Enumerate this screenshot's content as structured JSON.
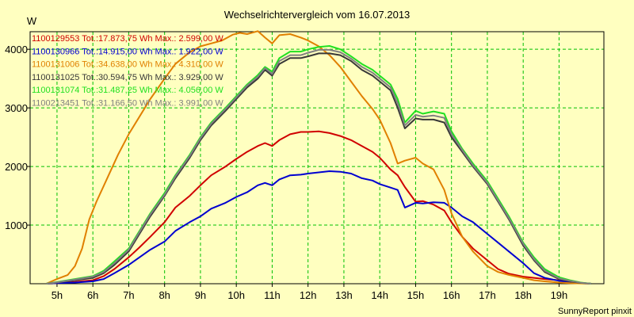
{
  "chart_data": {
    "type": "line",
    "title": "Wechselrichtervergleich vom 16.07.2013",
    "ylabel": "W",
    "footer": "SunnyReport pinxit",
    "x_ticks": [
      {
        "v": 5,
        "label": "5h"
      },
      {
        "v": 6,
        "label": "6h"
      },
      {
        "v": 7,
        "label": "7h"
      },
      {
        "v": 8,
        "label": "8h"
      },
      {
        "v": 9,
        "label": "9h"
      },
      {
        "v": 10,
        "label": "10h"
      },
      {
        "v": 11,
        "label": "11h"
      },
      {
        "v": 12,
        "label": "12h"
      },
      {
        "v": 13,
        "label": "13h"
      },
      {
        "v": 14,
        "label": "14h"
      },
      {
        "v": 15,
        "label": "15h"
      },
      {
        "v": 16,
        "label": "16h"
      },
      {
        "v": 17,
        "label": "17h"
      },
      {
        "v": 18,
        "label": "18h"
      },
      {
        "v": 19,
        "label": "19h"
      }
    ],
    "y_ticks": [
      {
        "v": 1000,
        "label": "1000"
      },
      {
        "v": 2000,
        "label": "2000"
      },
      {
        "v": 3000,
        "label": "3000"
      },
      {
        "v": 4000,
        "label": "4000"
      }
    ],
    "xlim": [
      4.25,
      20.25
    ],
    "ylim": [
      0,
      4300
    ],
    "grid": true,
    "legend_position": "top-left",
    "colors": {
      "background": "#ffffc0",
      "grid": "#00c000",
      "axis": "#000000"
    },
    "series": [
      {
        "name": "1100129553 Tot.:17.873,75 Wh Max.: 2.599,00 W",
        "color": "#d00000",
        "x": [
          4.7,
          5.0,
          5.5,
          6.0,
          6.3,
          6.6,
          7.0,
          7.3,
          7.6,
          8.0,
          8.3,
          8.7,
          9.0,
          9.3,
          9.7,
          10.0,
          10.3,
          10.6,
          10.8,
          11.0,
          11.2,
          11.5,
          11.8,
          12.0,
          12.3,
          12.6,
          12.9,
          13.2,
          13.5,
          13.8,
          14.0,
          14.3,
          14.5,
          14.7,
          15.0,
          15.2,
          15.5,
          15.8,
          16.0,
          16.3,
          16.6,
          17.0,
          17.3,
          17.6,
          18.0,
          18.3,
          18.6,
          19.0,
          19.3,
          19.6,
          19.9
        ],
        "y": [
          0,
          10,
          30,
          60,
          130,
          250,
          450,
          620,
          800,
          1050,
          1300,
          1500,
          1680,
          1850,
          2000,
          2130,
          2250,
          2350,
          2400,
          2350,
          2450,
          2550,
          2590,
          2590,
          2599,
          2570,
          2520,
          2450,
          2350,
          2250,
          2150,
          1950,
          1850,
          1650,
          1400,
          1410,
          1350,
          1250,
          1050,
          800,
          600,
          400,
          250,
          170,
          120,
          100,
          80,
          60,
          30,
          10,
          0
        ]
      },
      {
        "name": "1100130966 Tot.:14.915,00 Wh Max.: 1.922,00 W",
        "color": "#0000d0",
        "x": [
          4.7,
          5.0,
          5.5,
          6.0,
          6.3,
          6.6,
          7.0,
          7.3,
          7.6,
          8.0,
          8.3,
          8.7,
          9.0,
          9.3,
          9.7,
          10.0,
          10.3,
          10.6,
          10.8,
          11.0,
          11.2,
          11.5,
          11.8,
          12.0,
          12.3,
          12.6,
          12.9,
          13.2,
          13.5,
          13.8,
          14.0,
          14.3,
          14.5,
          14.7,
          15.0,
          15.2,
          15.5,
          15.8,
          16.0,
          16.3,
          16.6,
          17.0,
          17.3,
          17.6,
          18.0,
          18.3,
          18.6,
          19.0,
          19.3,
          19.6,
          19.9
        ],
        "y": [
          0,
          10,
          20,
          40,
          80,
          180,
          320,
          450,
          580,
          720,
          900,
          1050,
          1150,
          1280,
          1380,
          1480,
          1560,
          1680,
          1720,
          1680,
          1780,
          1850,
          1860,
          1880,
          1900,
          1920,
          1910,
          1880,
          1800,
          1760,
          1700,
          1640,
          1600,
          1300,
          1380,
          1370,
          1390,
          1380,
          1300,
          1150,
          1050,
          850,
          700,
          550,
          350,
          180,
          100,
          50,
          20,
          10,
          0
        ]
      },
      {
        "name": "1100131006 Tot.:34.638,00 Wh Max.: 4.310,00 W",
        "color": "#e08000",
        "x": [
          4.7,
          5.0,
          5.3,
          5.5,
          5.7,
          5.9,
          6.1,
          6.4,
          6.7,
          7.0,
          7.3,
          7.6,
          8.0,
          8.3,
          8.7,
          9.0,
          9.3,
          9.6,
          9.9,
          10.1,
          10.3,
          10.6,
          10.8,
          11.0,
          11.2,
          11.5,
          11.8,
          12.0,
          12.3,
          12.6,
          12.9,
          13.2,
          13.5,
          13.8,
          14.0,
          14.3,
          14.5,
          14.7,
          15.0,
          15.2,
          15.5,
          15.8,
          16.0,
          16.3,
          16.6,
          17.0,
          17.3,
          17.6,
          18.0,
          18.3,
          18.6,
          19.0,
          19.3,
          19.6,
          19.9
        ],
        "y": [
          0,
          80,
          150,
          300,
          600,
          1100,
          1400,
          1800,
          2200,
          2550,
          2850,
          3150,
          3500,
          3750,
          3950,
          4050,
          4100,
          4150,
          4250,
          4280,
          4260,
          4310,
          4200,
          4100,
          4240,
          4260,
          4200,
          4150,
          4050,
          3900,
          3700,
          3450,
          3200,
          2980,
          2800,
          2400,
          2050,
          2100,
          2150,
          2050,
          1950,
          1600,
          1200,
          800,
          550,
          300,
          200,
          150,
          100,
          60,
          40,
          20,
          10,
          5,
          0
        ]
      },
      {
        "name": "1100131025 Tot.:30.594,75 Wh Max.: 3.929,00 W",
        "color": "#383838",
        "x": [
          4.7,
          5.0,
          5.5,
          6.0,
          6.3,
          6.6,
          7.0,
          7.3,
          7.6,
          8.0,
          8.3,
          8.7,
          9.0,
          9.3,
          9.7,
          10.0,
          10.3,
          10.6,
          10.8,
          11.0,
          11.2,
          11.5,
          11.8,
          12.0,
          12.3,
          12.6,
          12.9,
          13.2,
          13.5,
          13.8,
          14.0,
          14.3,
          14.5,
          14.7,
          15.0,
          15.2,
          15.5,
          15.8,
          16.0,
          16.3,
          16.6,
          17.0,
          17.3,
          17.6,
          18.0,
          18.3,
          18.6,
          19.0,
          19.3,
          19.6,
          19.9
        ],
        "y": [
          0,
          20,
          60,
          100,
          180,
          320,
          550,
          850,
          1150,
          1500,
          1800,
          2150,
          2450,
          2700,
          2950,
          3150,
          3350,
          3500,
          3650,
          3550,
          3750,
          3850,
          3850,
          3880,
          3929,
          3929,
          3900,
          3800,
          3650,
          3550,
          3450,
          3300,
          3000,
          2650,
          2820,
          2800,
          2800,
          2750,
          2500,
          2250,
          2000,
          1700,
          1400,
          1100,
          650,
          400,
          200,
          80,
          40,
          15,
          0
        ]
      },
      {
        "name": "1100131074 Tot.:31.487,25 Wh Max.: 4.056,00 W",
        "color": "#20e020",
        "x": [
          4.7,
          5.0,
          5.5,
          6.0,
          6.3,
          6.6,
          7.0,
          7.3,
          7.6,
          8.0,
          8.3,
          8.7,
          9.0,
          9.3,
          9.7,
          10.0,
          10.3,
          10.6,
          10.8,
          11.0,
          11.2,
          11.5,
          11.8,
          12.0,
          12.3,
          12.6,
          12.9,
          13.2,
          13.5,
          13.8,
          14.0,
          14.3,
          14.5,
          14.7,
          15.0,
          15.2,
          15.5,
          15.8,
          16.0,
          16.3,
          16.6,
          17.0,
          17.3,
          17.6,
          18.0,
          18.3,
          18.6,
          19.0,
          19.3,
          19.6,
          19.9
        ],
        "y": [
          0,
          30,
          80,
          130,
          220,
          380,
          600,
          900,
          1200,
          1550,
          1850,
          2200,
          2500,
          2750,
          3000,
          3200,
          3400,
          3560,
          3700,
          3620,
          3850,
          3960,
          3960,
          4000,
          4040,
          4056,
          4000,
          3880,
          3750,
          3650,
          3550,
          3400,
          3150,
          2750,
          2950,
          2900,
          2940,
          2900,
          2600,
          2300,
          2050,
          1750,
          1450,
          1150,
          700,
          450,
          250,
          110,
          60,
          20,
          0
        ]
      },
      {
        "name": "1100213451 Tot.:31.166,50 Wh Max.: 3.991,00 W",
        "color": "#808080",
        "x": [
          4.7,
          5.0,
          5.5,
          6.0,
          6.3,
          6.6,
          7.0,
          7.3,
          7.6,
          8.0,
          8.3,
          8.7,
          9.0,
          9.3,
          9.7,
          10.0,
          10.3,
          10.6,
          10.8,
          11.0,
          11.2,
          11.5,
          11.8,
          12.0,
          12.3,
          12.6,
          12.9,
          13.2,
          13.5,
          13.8,
          14.0,
          14.3,
          14.5,
          14.7,
          15.0,
          15.2,
          15.5,
          15.8,
          16.0,
          16.3,
          16.6,
          17.0,
          17.3,
          17.6,
          18.0,
          18.3,
          18.6,
          19.0,
          19.3,
          19.6,
          19.9
        ],
        "y": [
          0,
          25,
          70,
          120,
          200,
          350,
          580,
          880,
          1180,
          1520,
          1830,
          2180,
          2480,
          2730,
          2980,
          3180,
          3380,
          3530,
          3680,
          3580,
          3800,
          3900,
          3900,
          3940,
          3991,
          3991,
          3950,
          3840,
          3700,
          3600,
          3500,
          3350,
          3080,
          2700,
          2880,
          2850,
          2870,
          2830,
          2550,
          2280,
          2020,
          1720,
          1420,
          1120,
          680,
          420,
          220,
          90,
          50,
          18,
          0
        ]
      }
    ]
  }
}
